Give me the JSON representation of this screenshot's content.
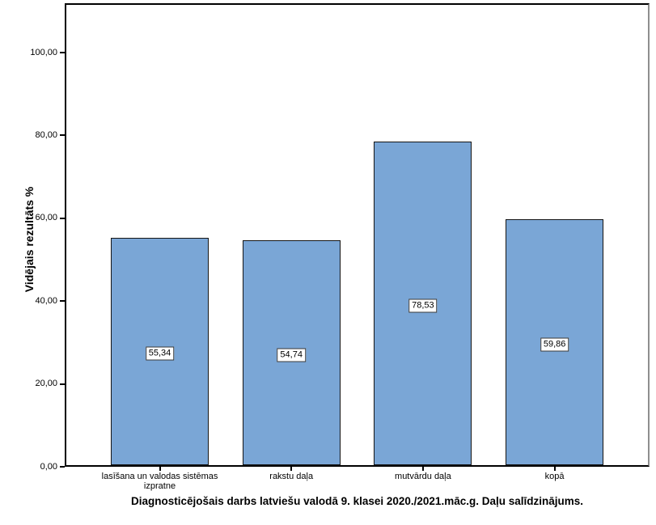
{
  "chart": {
    "title": "Diagnosticējošais darbs latviešu valodā 9. klasei 2020./2021.māc.g. Daļu salīdzinājums.",
    "y_axis_title": "Vidējais rezultāts %",
    "bar_fill_color": "#7AA6D6",
    "bar_border_color": "#151515",
    "frame_color": "#000000",
    "y_tick_labels": [
      "0,00",
      "20,00",
      "40,00",
      "60,00",
      "80,00",
      "100,00"
    ]
  },
  "chart_data": {
    "type": "bar",
    "categories": [
      "lasīšana un valodas sistēmas izpratne",
      "rakstu daļa",
      "mutvārdu daļa",
      "kopā"
    ],
    "values": [
      55.34,
      54.74,
      78.53,
      59.86
    ],
    "value_labels": [
      "55,34",
      "54,74",
      "78,53",
      "59,86"
    ],
    "title": "Diagnosticējošais darbs latviešu valodā 9. klasei 2020./2021.māc.g. Daļu salīdzinājums.",
    "xlabel": "",
    "ylabel": "Vidējais rezultāts %",
    "ylim": [
      0,
      111.7
    ],
    "y_tick_values": [
      0,
      20,
      40,
      60,
      80,
      100
    ],
    "grid": false,
    "legend": false,
    "value_labels_shown_in_boxes": true
  }
}
